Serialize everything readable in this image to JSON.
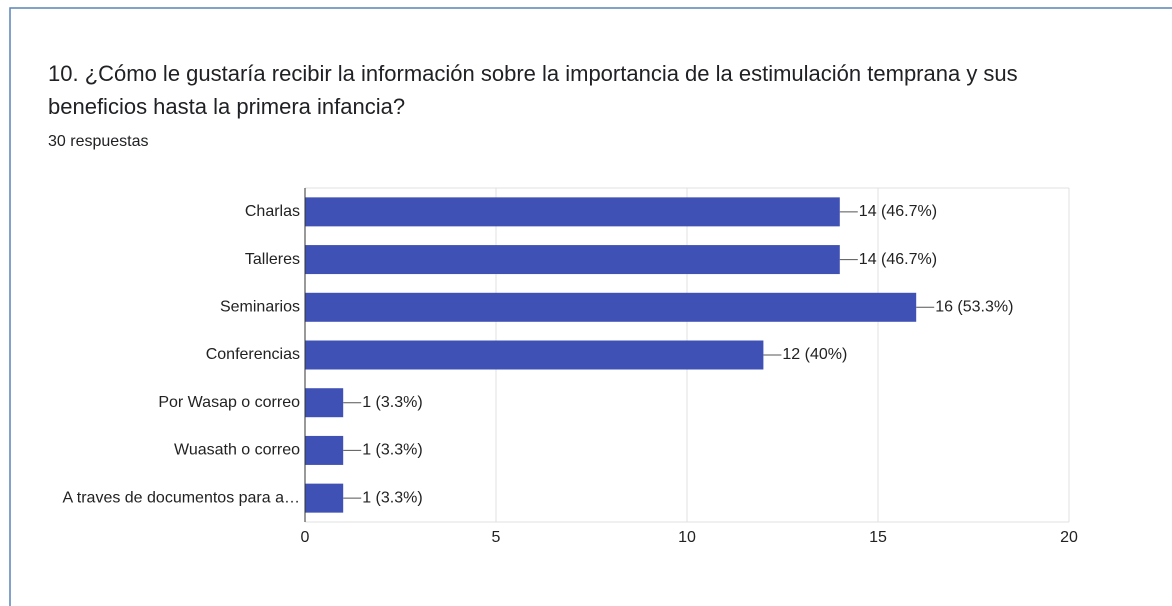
{
  "chart_data": {
    "type": "bar",
    "orientation": "horizontal",
    "title": "10. ¿Cómo le gustaría recibir la información sobre la importancia de la estimulación temprana y sus beneficios hasta la primera infancia?",
    "subtitle": "30 respuestas",
    "categories": [
      "Charlas",
      "Talleres",
      "Seminarios",
      "Conferencias",
      "Por Wasap o correo",
      "Wuasath o correo",
      "A traves de documentos para a…"
    ],
    "values": [
      14,
      14,
      16,
      12,
      1,
      1,
      1
    ],
    "value_labels": [
      "14 (46.7%)",
      "14 (46.7%)",
      "16 (53.3%)",
      "12 (40%)",
      "1 (3.3%)",
      "1 (3.3%)",
      "1 (3.3%)"
    ],
    "color": "#3f51b5",
    "xlim": [
      0,
      20
    ],
    "xticks": [
      0,
      5,
      10,
      15,
      20
    ],
    "grid": true
  }
}
